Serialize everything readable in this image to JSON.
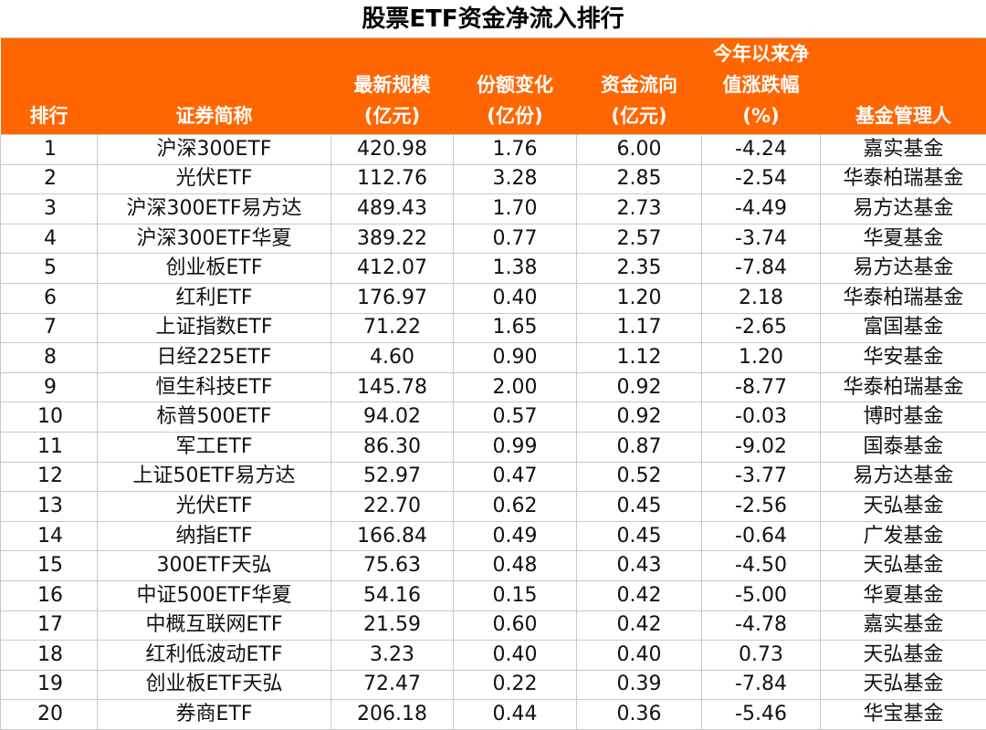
{
  "title": "股票ETF资金净流入排行",
  "headers": {
    "rank": [
      "排行"
    ],
    "name": [
      "证券简称"
    ],
    "size": [
      "最新规模",
      "(亿元)"
    ],
    "share": [
      "份额变化",
      "(亿份)"
    ],
    "flow": [
      "资金流向",
      "(亿元)"
    ],
    "ret": [
      "今年以来净",
      "值涨跌幅",
      "(%)"
    ],
    "mgr": [
      "基金管理人"
    ]
  },
  "rows": [
    {
      "rank": "1",
      "name": "沪深300ETF",
      "size": "420.98",
      "share": "1.76",
      "flow": "6.00",
      "ret": "-4.24",
      "mgr": "嘉实基金"
    },
    {
      "rank": "2",
      "name": "光伏ETF",
      "size": "112.76",
      "share": "3.28",
      "flow": "2.85",
      "ret": "-2.54",
      "mgr": "华泰柏瑞基金"
    },
    {
      "rank": "3",
      "name": "沪深300ETF易方达",
      "size": "489.43",
      "share": "1.70",
      "flow": "2.73",
      "ret": "-4.49",
      "mgr": "易方达基金"
    },
    {
      "rank": "4",
      "name": "沪深300ETF华夏",
      "size": "389.22",
      "share": "0.77",
      "flow": "2.57",
      "ret": "-3.74",
      "mgr": "华夏基金"
    },
    {
      "rank": "5",
      "name": "创业板ETF",
      "size": "412.07",
      "share": "1.38",
      "flow": "2.35",
      "ret": "-7.84",
      "mgr": "易方达基金"
    },
    {
      "rank": "6",
      "name": "红利ETF",
      "size": "176.97",
      "share": "0.40",
      "flow": "1.20",
      "ret": "2.18",
      "mgr": "华泰柏瑞基金"
    },
    {
      "rank": "7",
      "name": "上证指数ETF",
      "size": "71.22",
      "share": "1.65",
      "flow": "1.17",
      "ret": "-2.65",
      "mgr": "富国基金"
    },
    {
      "rank": "8",
      "name": "日经225ETF",
      "size": "4.60",
      "share": "0.90",
      "flow": "1.12",
      "ret": "1.20",
      "mgr": "华安基金"
    },
    {
      "rank": "9",
      "name": "恒生科技ETF",
      "size": "145.78",
      "share": "2.00",
      "flow": "0.92",
      "ret": "-8.77",
      "mgr": "华泰柏瑞基金"
    },
    {
      "rank": "10",
      "name": "标普500ETF",
      "size": "94.02",
      "share": "0.57",
      "flow": "0.92",
      "ret": "-0.03",
      "mgr": "博时基金"
    },
    {
      "rank": "11",
      "name": "军工ETF",
      "size": "86.30",
      "share": "0.99",
      "flow": "0.87",
      "ret": "-9.02",
      "mgr": "国泰基金"
    },
    {
      "rank": "12",
      "name": "上证50ETF易方达",
      "size": "52.97",
      "share": "0.47",
      "flow": "0.52",
      "ret": "-3.77",
      "mgr": "易方达基金"
    },
    {
      "rank": "13",
      "name": "光伏ETF",
      "size": "22.70",
      "share": "0.62",
      "flow": "0.45",
      "ret": "-2.56",
      "mgr": "天弘基金"
    },
    {
      "rank": "14",
      "name": "纳指ETF",
      "size": "166.84",
      "share": "0.49",
      "flow": "0.45",
      "ret": "-0.64",
      "mgr": "广发基金"
    },
    {
      "rank": "15",
      "name": "300ETF天弘",
      "size": "75.63",
      "share": "0.48",
      "flow": "0.43",
      "ret": "-4.50",
      "mgr": "天弘基金"
    },
    {
      "rank": "16",
      "name": "中证500ETF华夏",
      "size": "54.16",
      "share": "0.15",
      "flow": "0.42",
      "ret": "-5.00",
      "mgr": "华夏基金"
    },
    {
      "rank": "17",
      "name": "中概互联网ETF",
      "size": "21.59",
      "share": "0.60",
      "flow": "0.42",
      "ret": "-4.78",
      "mgr": "嘉实基金"
    },
    {
      "rank": "18",
      "name": "红利低波动ETF",
      "size": "3.23",
      "share": "0.40",
      "flow": "0.40",
      "ret": "0.73",
      "mgr": "天弘基金"
    },
    {
      "rank": "19",
      "name": "创业板ETF天弘",
      "size": "72.47",
      "share": "0.22",
      "flow": "0.39",
      "ret": "-7.84",
      "mgr": "天弘基金"
    },
    {
      "rank": "20",
      "name": "券商ETF",
      "size": "206.18",
      "share": "0.44",
      "flow": "0.36",
      "ret": "-5.46",
      "mgr": "华宝基金"
    }
  ]
}
